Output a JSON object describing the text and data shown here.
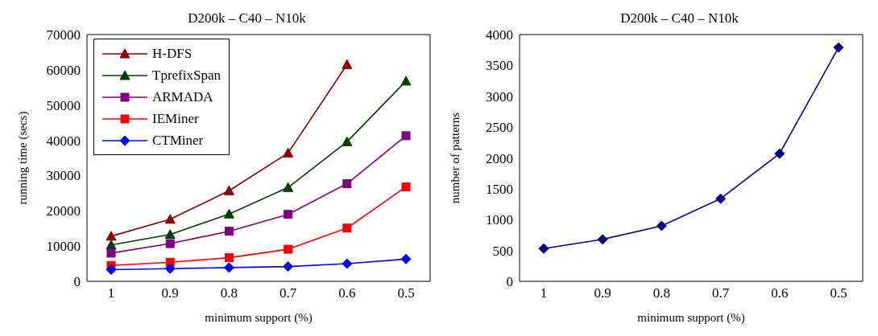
{
  "chart_data": [
    {
      "type": "line",
      "title": "D200k – C40 – N10k",
      "xlabel": "minimum support (%)",
      "ylabel": "running time (secs)",
      "categories": [
        "1",
        "0.9",
        "0.8",
        "0.7",
        "0.6",
        "0.5"
      ],
      "ylim": [
        0,
        70000
      ],
      "yticks": [
        0,
        10000,
        20000,
        30000,
        40000,
        50000,
        60000,
        70000
      ],
      "grid": false,
      "legend": "top left",
      "series": [
        {
          "name": "H-DFS",
          "color": "#8b0000",
          "marker": "triangle",
          "values": [
            12800,
            17600,
            25700,
            36400,
            61500,
            null
          ]
        },
        {
          "name": "TprefixSpan",
          "color": "#004000",
          "marker": "triangle",
          "values": [
            10300,
            13300,
            19100,
            26600,
            39600,
            56800
          ]
        },
        {
          "name": "ARMADA",
          "color": "#800080",
          "marker": "square",
          "values": [
            8000,
            10700,
            14200,
            19000,
            27700,
            41300
          ]
        },
        {
          "name": "IEMiner",
          "color": "#ff0000",
          "marker": "square",
          "values": [
            4500,
            5400,
            6700,
            9100,
            15100,
            26800
          ]
        },
        {
          "name": "CTMiner",
          "color": "#0000ff",
          "marker": "diamond",
          "values": [
            3300,
            3600,
            3900,
            4200,
            5000,
            6300
          ]
        }
      ]
    },
    {
      "type": "line",
      "title": "D200k – C40 – N10k",
      "xlabel": "minimum support (%)",
      "ylabel": "number of patterns",
      "categories": [
        "1",
        "0.9",
        "0.8",
        "0.7",
        "0.6",
        "0.5"
      ],
      "ylim": [
        0,
        4000
      ],
      "yticks": [
        0,
        500,
        1000,
        1500,
        2000,
        2500,
        3000,
        3500,
        4000
      ],
      "grid": false,
      "legend": false,
      "marker": "diamond",
      "series": [
        {
          "color": "#000080",
          "values": [
            530,
            680,
            900,
            1340,
            2070,
            3790
          ]
        }
      ]
    }
  ]
}
